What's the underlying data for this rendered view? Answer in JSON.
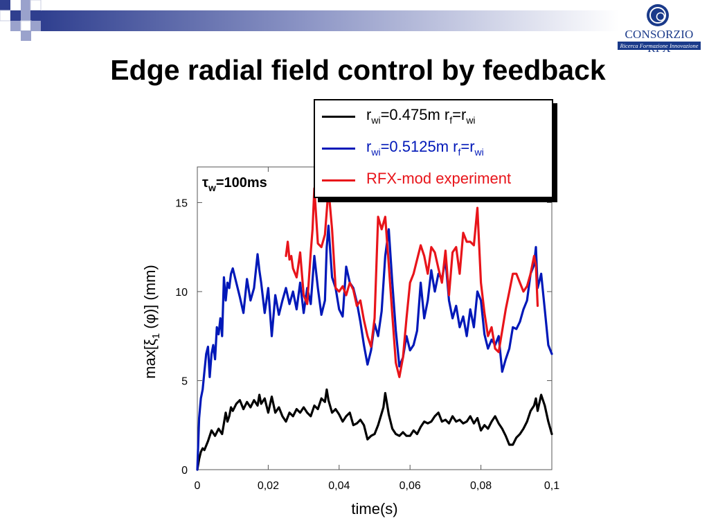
{
  "slide": {
    "title": "Edge radial field control by feedback"
  },
  "logo": {
    "name": "CONSORZIO RFX",
    "tagline": "Ricerca Formazione Innovazione"
  },
  "colors": {
    "accent_blue": "#1a3a8a",
    "series_black": "#000000",
    "series_blue": "#0018b8",
    "series_red": "#e8141a"
  },
  "chart_data": {
    "type": "line",
    "annotation": {
      "base": "τ",
      "sub": "w",
      "rest": "=100ms"
    },
    "xlabel": "time(s)",
    "ylabel": {
      "pre": "max[ξ",
      "sub": "1",
      "post": " (φ)] (mm)"
    },
    "xlim": [
      0,
      0.1
    ],
    "ylim": [
      0,
      17
    ],
    "xticks": [
      0,
      0.02,
      0.04,
      0.06,
      0.08,
      0.1
    ],
    "xtick_labels": [
      "0",
      "0,02",
      "0,04",
      "0,06",
      "0,08",
      "0,1"
    ],
    "yticks": [
      0,
      5,
      10,
      15
    ],
    "ytick_labels": [
      "0",
      "5",
      "10",
      "15"
    ],
    "grid": false,
    "legend_position": "top-right, outside plot",
    "series": [
      {
        "color": "#000000",
        "legend": [
          {
            "t": "r"
          },
          {
            "t": "wi",
            "sub": true
          },
          {
            "t": "=0.475m  r"
          },
          {
            "t": "f",
            "sub": true
          },
          {
            "t": "=r"
          },
          {
            "t": "wi",
            "sub": true
          }
        ],
        "x": [
          0,
          0.0005,
          0.001,
          0.0015,
          0.002,
          0.003,
          0.004,
          0.005,
          0.006,
          0.007,
          0.008,
          0.0085,
          0.009,
          0.0095,
          0.01,
          0.011,
          0.012,
          0.013,
          0.014,
          0.015,
          0.016,
          0.017,
          0.0175,
          0.018,
          0.019,
          0.02,
          0.021,
          0.022,
          0.023,
          0.024,
          0.025,
          0.026,
          0.027,
          0.028,
          0.029,
          0.03,
          0.031,
          0.032,
          0.033,
          0.034,
          0.035,
          0.036,
          0.0365,
          0.037,
          0.038,
          0.039,
          0.04,
          0.041,
          0.042,
          0.043,
          0.044,
          0.045,
          0.046,
          0.047,
          0.048,
          0.049,
          0.05,
          0.051,
          0.0525,
          0.053,
          0.054,
          0.055,
          0.056,
          0.057,
          0.058,
          0.059,
          0.06,
          0.061,
          0.062,
          0.063,
          0.064,
          0.065,
          0.066,
          0.067,
          0.068,
          0.069,
          0.07,
          0.071,
          0.072,
          0.073,
          0.074,
          0.075,
          0.076,
          0.077,
          0.078,
          0.079,
          0.08,
          0.081,
          0.082,
          0.083,
          0.084,
          0.085,
          0.086,
          0.087,
          0.088,
          0.089,
          0.09,
          0.091,
          0.092,
          0.093,
          0.094,
          0.095,
          0.0955,
          0.096,
          0.097,
          0.098,
          0.099,
          0.1
        ],
        "y": [
          0,
          0.6,
          1.0,
          1.2,
          1.1,
          1.6,
          2.2,
          1.9,
          2.3,
          2.0,
          3.2,
          2.7,
          3.0,
          3.5,
          3.3,
          3.7,
          3.9,
          3.4,
          3.8,
          3.5,
          3.9,
          3.6,
          4.2,
          3.7,
          4.0,
          3.2,
          4.1,
          3.2,
          3.5,
          3.0,
          2.7,
          3.2,
          3.0,
          3.4,
          3.2,
          3.5,
          3.2,
          3.0,
          3.6,
          3.4,
          4.0,
          3.8,
          4.5,
          3.9,
          3.2,
          3.4,
          3.1,
          2.7,
          3.0,
          3.2,
          2.5,
          2.6,
          2.8,
          2.5,
          1.7,
          1.9,
          2.0,
          2.5,
          3.5,
          4.3,
          3.1,
          2.3,
          2.0,
          1.9,
          2.1,
          1.9,
          1.9,
          2.2,
          2.0,
          2.4,
          2.7,
          2.6,
          2.7,
          3.0,
          3.2,
          2.7,
          2.8,
          2.6,
          3.0,
          2.7,
          2.8,
          2.6,
          2.7,
          3.0,
          2.6,
          2.9,
          2.2,
          2.5,
          2.3,
          2.7,
          3.0,
          2.6,
          2.3,
          1.9,
          1.4,
          1.4,
          1.8,
          2.0,
          2.3,
          2.7,
          3.3,
          3.6,
          4.0,
          3.3,
          4.2,
          3.6,
          2.7,
          2.0
        ]
      },
      {
        "color": "#0018b8",
        "legend": [
          {
            "t": "r"
          },
          {
            "t": "wi",
            "sub": true
          },
          {
            "t": "=0.5125m  r"
          },
          {
            "t": "f",
            "sub": true
          },
          {
            "t": "=r"
          },
          {
            "t": "wi",
            "sub": true
          }
        ],
        "x": [
          0,
          0.0005,
          0.001,
          0.0015,
          0.002,
          0.0025,
          0.003,
          0.0035,
          0.004,
          0.0045,
          0.005,
          0.0055,
          0.006,
          0.0065,
          0.007,
          0.0075,
          0.008,
          0.0085,
          0.009,
          0.0095,
          0.01,
          0.011,
          0.012,
          0.013,
          0.014,
          0.015,
          0.016,
          0.017,
          0.0175,
          0.018,
          0.019,
          0.02,
          0.021,
          0.022,
          0.023,
          0.024,
          0.025,
          0.026,
          0.027,
          0.028,
          0.029,
          0.03,
          0.031,
          0.032,
          0.033,
          0.034,
          0.035,
          0.036,
          0.0365,
          0.037,
          0.038,
          0.039,
          0.04,
          0.041,
          0.042,
          0.043,
          0.044,
          0.045,
          0.046,
          0.047,
          0.048,
          0.049,
          0.05,
          0.051,
          0.052,
          0.053,
          0.054,
          0.055,
          0.056,
          0.057,
          0.058,
          0.059,
          0.06,
          0.061,
          0.062,
          0.063,
          0.064,
          0.065,
          0.066,
          0.067,
          0.068,
          0.069,
          0.07,
          0.071,
          0.072,
          0.073,
          0.074,
          0.075,
          0.076,
          0.077,
          0.078,
          0.079,
          0.08,
          0.081,
          0.082,
          0.083,
          0.084,
          0.085,
          0.086,
          0.087,
          0.088,
          0.089,
          0.09,
          0.091,
          0.092,
          0.093,
          0.094,
          0.095,
          0.0955,
          0.096,
          0.097,
          0.098,
          0.099,
          0.1
        ],
        "y": [
          0,
          2.9,
          4.0,
          4.5,
          5.5,
          6.5,
          6.9,
          5.2,
          6.5,
          7.0,
          6.2,
          8.0,
          7.6,
          8.5,
          7.5,
          10.8,
          9.5,
          10.5,
          10.2,
          11.0,
          11.3,
          10.5,
          9.7,
          8.8,
          10.7,
          9.5,
          10.2,
          12.1,
          11.2,
          10.5,
          8.8,
          10.2,
          7.5,
          9.8,
          8.7,
          9.5,
          10.2,
          9.3,
          10.0,
          9.0,
          10.5,
          8.8,
          10.2,
          9.3,
          12.0,
          10.2,
          8.7,
          9.5,
          12.5,
          13.7,
          10.8,
          10.2,
          9.0,
          8.6,
          11.4,
          10.5,
          10.2,
          9.4,
          8.3,
          7.0,
          5.9,
          6.7,
          8.2,
          7.5,
          8.9,
          12.0,
          13.5,
          10.5,
          7.8,
          5.8,
          6.3,
          7.5,
          6.7,
          7.0,
          7.8,
          10.5,
          8.5,
          9.5,
          11.2,
          10.0,
          11.0,
          10.7,
          11.8,
          9.5,
          8.5,
          9.2,
          8.0,
          8.6,
          7.5,
          9.0,
          8.0,
          10.0,
          9.5,
          7.6,
          6.8,
          7.3,
          7.0,
          7.5,
          5.5,
          6.2,
          6.8,
          8.0,
          7.9,
          8.3,
          9.0,
          9.5,
          11.0,
          11.5,
          12.5,
          10.2,
          11.0,
          9.0,
          7.0,
          6.5
        ]
      },
      {
        "color": "#e8141a",
        "legend": [
          {
            "t": "RFX-mod experiment"
          }
        ],
        "x": [
          0.025,
          0.0255,
          0.026,
          0.0265,
          0.027,
          0.028,
          0.029,
          0.03,
          0.031,
          0.032,
          0.0325,
          0.033,
          0.034,
          0.035,
          0.036,
          0.0365,
          0.037,
          0.038,
          0.039,
          0.04,
          0.041,
          0.042,
          0.043,
          0.044,
          0.045,
          0.046,
          0.047,
          0.048,
          0.049,
          0.05,
          0.051,
          0.052,
          0.053,
          0.054,
          0.055,
          0.056,
          0.057,
          0.058,
          0.059,
          0.06,
          0.061,
          0.062,
          0.063,
          0.064,
          0.065,
          0.066,
          0.067,
          0.068,
          0.069,
          0.07,
          0.071,
          0.072,
          0.073,
          0.074,
          0.075,
          0.076,
          0.077,
          0.078,
          0.079,
          0.08,
          0.081,
          0.082,
          0.083,
          0.084,
          0.085,
          0.086,
          0.087,
          0.088,
          0.089,
          0.09,
          0.091,
          0.092,
          0.093,
          0.094,
          0.095,
          0.0955,
          0.096
        ],
        "y": [
          12.0,
          12.8,
          11.8,
          12.0,
          11.3,
          10.8,
          12.2,
          9.8,
          9.3,
          12.2,
          13.5,
          15.8,
          12.7,
          12.5,
          13.2,
          14.5,
          15.8,
          13.5,
          10.2,
          10.0,
          10.3,
          9.8,
          10.5,
          10.1,
          9.2,
          9.5,
          8.4,
          7.5,
          6.9,
          8.5,
          14.2,
          13.5,
          14.2,
          11.5,
          8.7,
          6.0,
          5.2,
          6.3,
          8.5,
          10.5,
          11.0,
          11.8,
          12.6,
          12.0,
          11.0,
          12.5,
          12.2,
          11.3,
          10.5,
          12.3,
          9.8,
          12.2,
          12.5,
          11.0,
          13.3,
          12.8,
          12.8,
          12.6,
          14.7,
          10.5,
          8.8,
          7.5,
          8.0,
          6.8,
          6.6,
          7.8,
          9.0,
          10.0,
          11.0,
          11.0,
          10.5,
          10.0,
          10.3,
          11.0,
          12.0,
          11.5,
          9.2
        ]
      }
    ]
  }
}
